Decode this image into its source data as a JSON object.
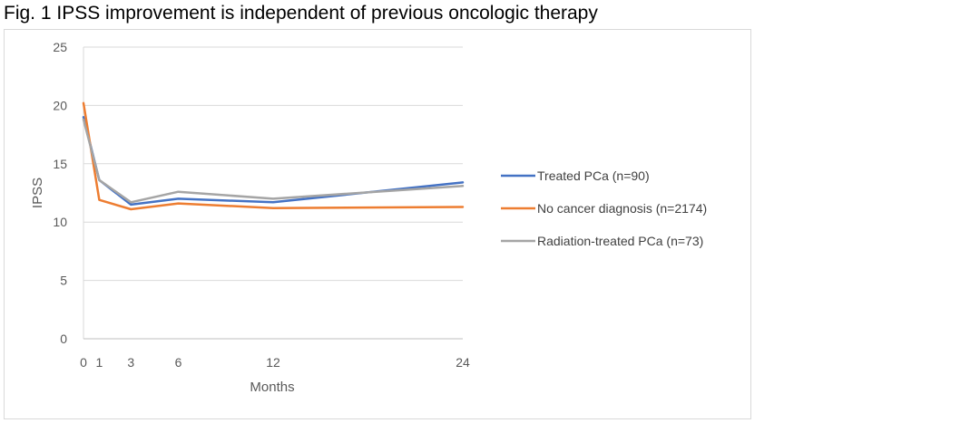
{
  "figure": {
    "title": "Fig. 1 IPSS improvement is independent of previous oncologic therapy"
  },
  "chart_data": {
    "type": "line",
    "title": "",
    "xlabel": "Months",
    "ylabel": "IPSS",
    "x": [
      0,
      1,
      3,
      6,
      12,
      24
    ],
    "x_tick_labels": [
      "0",
      "1",
      "3",
      "6",
      "12",
      "24"
    ],
    "xlim": [
      0,
      24
    ],
    "ylim": [
      0,
      25
    ],
    "y_ticks": [
      0,
      5,
      10,
      15,
      20,
      25
    ],
    "grid": "horizontal",
    "legend_position": "right",
    "series": [
      {
        "name": "Treated PCa (n=90)",
        "color": "#4472c4",
        "values": [
          19.0,
          13.6,
          11.5,
          12.0,
          11.7,
          13.4
        ]
      },
      {
        "name": "No cancer diagnosis (n=2174)",
        "color": "#ed7d31",
        "values": [
          20.2,
          11.9,
          11.1,
          11.6,
          11.2,
          11.3
        ]
      },
      {
        "name": "Radiation-treated PCa (n=73)",
        "color": "#a5a5a5",
        "values": [
          18.8,
          13.6,
          11.7,
          12.6,
          12.0,
          13.1
        ]
      }
    ]
  }
}
